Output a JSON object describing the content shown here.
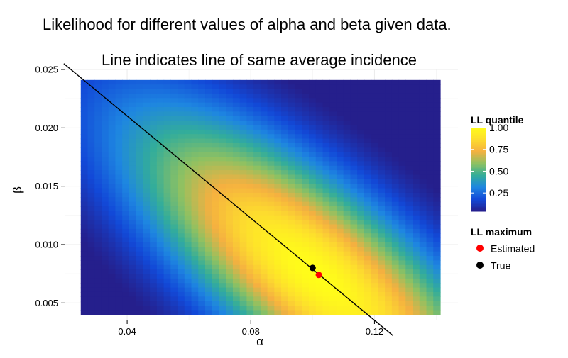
{
  "chart_data": {
    "type": "heatmap",
    "title": "Likelihood for different values of alpha and beta given data.",
    "subtitle": "Line indicates line of same average incidence",
    "xlabel": "α",
    "ylabel": "β",
    "xlim": [
      0.02,
      0.147
    ],
    "ylim": [
      0.0035,
      0.025
    ],
    "x_ticks": [
      0.04,
      0.08,
      0.12
    ],
    "x_tick_labels": [
      "0.04",
      "0.08",
      "0.12"
    ],
    "y_ticks": [
      0.005,
      0.01,
      0.015,
      0.02,
      0.025
    ],
    "y_tick_labels": [
      "0.005",
      "0.010",
      "0.015",
      "0.020",
      "0.025"
    ],
    "grid": true,
    "heatmap_extent": {
      "x": [
        0.025,
        0.152
      ],
      "y": [
        0.004,
        0.0241
      ]
    },
    "colorscale": [
      "#251f8c",
      "#1249d8",
      "#1e86e1",
      "#33ad9a",
      "#8ec162",
      "#f5b040",
      "#fddc2e",
      "#fffd19"
    ],
    "ll_peak": {
      "alpha": 0.101,
      "beta": 0.0074
    },
    "iso_incidence_line": {
      "points": [
        [
          0.0195,
          0.0255
        ],
        [
          0.126,
          0.0022
        ]
      ]
    },
    "points": [
      {
        "series": "Estimated",
        "alpha": 0.102,
        "beta": 0.0074,
        "color": "#ff0000"
      },
      {
        "series": "True",
        "alpha": 0.1,
        "beta": 0.008,
        "color": "#000000"
      }
    ],
    "legend_placement": "right",
    "colorbar": {
      "title": "LL quantile",
      "ticks": [
        0.25,
        0.5,
        0.75,
        1.0
      ],
      "tick_labels": [
        "0.25",
        "0.50",
        "0.75",
        "1.00"
      ],
      "range": [
        0.04,
        1.0
      ]
    },
    "point_legend": {
      "title": "LL maximum",
      "items": [
        {
          "label": "Estimated",
          "color": "#ff0000"
        },
        {
          "label": "True",
          "color": "#000000"
        }
      ]
    }
  }
}
